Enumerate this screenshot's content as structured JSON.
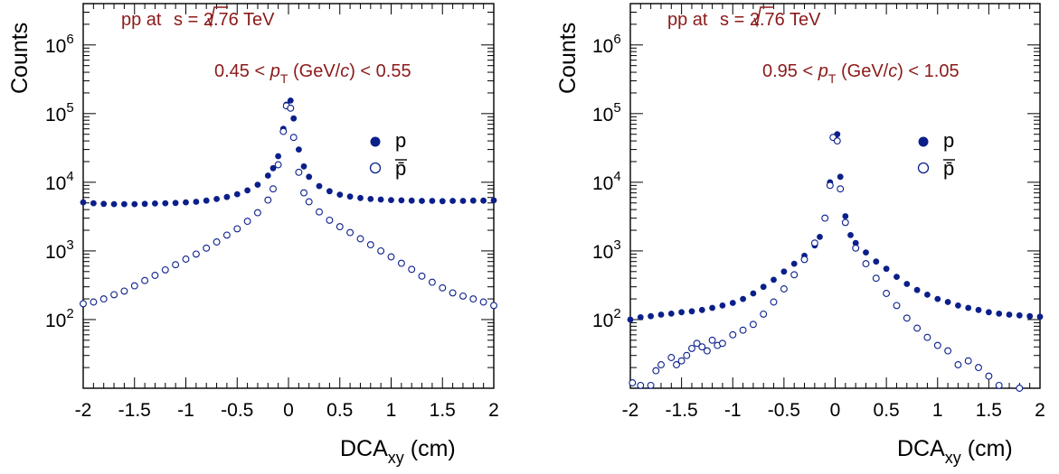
{
  "colors": {
    "marker": "#0b1f8a",
    "annotation": "#8b1a1a",
    "axis": "#000000"
  },
  "chart_data": [
    {
      "type": "scatter",
      "log_y": true,
      "xlabel_main": "DCA",
      "xlabel_sub": "xy",
      "xlabel_unit": " (cm)",
      "ylabel": "Counts",
      "xlim": [
        -2,
        2
      ],
      "ylim": [
        10,
        4000000
      ],
      "x_ticks": [
        "-2",
        "-1.5",
        "-1",
        "-0.5",
        "0",
        "0.5",
        "1",
        "1.5",
        "2"
      ],
      "y_ticks": [
        {
          "base": "10",
          "exp": "2"
        },
        {
          "base": "10",
          "exp": "3"
        },
        {
          "base": "10",
          "exp": "4"
        },
        {
          "base": "10",
          "exp": "5"
        },
        {
          "base": "10",
          "exp": "6"
        }
      ],
      "annotation_energy": {
        "prefix": "pp at ",
        "sqrt_s": "s",
        "suffix": " = 2.76 TeV"
      },
      "annotation_pt": {
        "low": "0.45",
        "var": "p",
        "var_sub": "T",
        "mid": " (GeV/",
        "c": "c",
        "high": ") < 0.55"
      },
      "legend_position": "right",
      "series": [
        {
          "name": "p",
          "marker": "filled",
          "points": [
            [
              -2.0,
              5100
            ],
            [
              -1.9,
              4950
            ],
            [
              -1.8,
              4850
            ],
            [
              -1.7,
              4800
            ],
            [
              -1.6,
              4800
            ],
            [
              -1.5,
              4800
            ],
            [
              -1.4,
              4850
            ],
            [
              -1.3,
              4900
            ],
            [
              -1.2,
              4950
            ],
            [
              -1.1,
              5000
            ],
            [
              -1.0,
              5100
            ],
            [
              -0.9,
              5200
            ],
            [
              -0.8,
              5400
            ],
            [
              -0.7,
              5700
            ],
            [
              -0.6,
              6100
            ],
            [
              -0.5,
              6700
            ],
            [
              -0.4,
              7600
            ],
            [
              -0.3,
              9200
            ],
            [
              -0.2,
              12500
            ],
            [
              -0.15,
              16000
            ],
            [
              -0.1,
              24000
            ],
            [
              -0.05,
              60000
            ],
            [
              -0.02,
              135000
            ],
            [
              0.02,
              155000
            ],
            [
              0.05,
              85000
            ],
            [
              0.1,
              30000
            ],
            [
              0.15,
              17000
            ],
            [
              0.2,
              12000
            ],
            [
              0.3,
              8800
            ],
            [
              0.4,
              7400
            ],
            [
              0.5,
              6600
            ],
            [
              0.6,
              6200
            ],
            [
              0.7,
              5900
            ],
            [
              0.8,
              5700
            ],
            [
              0.9,
              5600
            ],
            [
              1.0,
              5500
            ],
            [
              1.1,
              5450
            ],
            [
              1.2,
              5400
            ],
            [
              1.3,
              5350
            ],
            [
              1.4,
              5350
            ],
            [
              1.5,
              5300
            ],
            [
              1.6,
              5350
            ],
            [
              1.7,
              5350
            ],
            [
              1.8,
              5400
            ],
            [
              1.9,
              5400
            ],
            [
              2.0,
              5450
            ]
          ]
        },
        {
          "name": "p̄",
          "marker": "open",
          "points": [
            [
              -2.0,
              170
            ],
            [
              -1.9,
              180
            ],
            [
              -1.8,
              200
            ],
            [
              -1.7,
              230
            ],
            [
              -1.6,
              260
            ],
            [
              -1.5,
              310
            ],
            [
              -1.4,
              370
            ],
            [
              -1.3,
              440
            ],
            [
              -1.2,
              530
            ],
            [
              -1.1,
              630
            ],
            [
              -1.0,
              760
            ],
            [
              -0.9,
              900
            ],
            [
              -0.8,
              1100
            ],
            [
              -0.7,
              1350
            ],
            [
              -0.6,
              1700
            ],
            [
              -0.5,
              2100
            ],
            [
              -0.4,
              2700
            ],
            [
              -0.3,
              3600
            ],
            [
              -0.2,
              5500
            ],
            [
              -0.15,
              8000
            ],
            [
              -0.1,
              18000
            ],
            [
              -0.05,
              55000
            ],
            [
              -0.02,
              130000
            ],
            [
              0.02,
              120000
            ],
            [
              0.05,
              45000
            ],
            [
              0.1,
              14000
            ],
            [
              0.15,
              7000
            ],
            [
              0.2,
              5200
            ],
            [
              0.3,
              3700
            ],
            [
              0.4,
              2800
            ],
            [
              0.5,
              2250
            ],
            [
              0.6,
              1850
            ],
            [
              0.7,
              1500
            ],
            [
              0.8,
              1230
            ],
            [
              0.9,
              1000
            ],
            [
              1.0,
              820
            ],
            [
              1.1,
              660
            ],
            [
              1.2,
              540
            ],
            [
              1.3,
              430
            ],
            [
              1.4,
              350
            ],
            [
              1.5,
              290
            ],
            [
              1.6,
              245
            ],
            [
              1.7,
              220
            ],
            [
              1.8,
              200
            ],
            [
              1.9,
              180
            ],
            [
              2.0,
              160
            ]
          ]
        }
      ]
    },
    {
      "type": "scatter",
      "log_y": true,
      "xlabel_main": "DCA",
      "xlabel_sub": "xy",
      "xlabel_unit": " (cm)",
      "ylabel": "Counts",
      "xlim": [
        -2,
        2
      ],
      "ylim": [
        10,
        4000000
      ],
      "x_ticks": [
        "-2",
        "-1.5",
        "-1",
        "-0.5",
        "0",
        "0.5",
        "1",
        "1.5",
        "2"
      ],
      "y_ticks": [
        {
          "base": "10",
          "exp": "2"
        },
        {
          "base": "10",
          "exp": "3"
        },
        {
          "base": "10",
          "exp": "4"
        },
        {
          "base": "10",
          "exp": "5"
        },
        {
          "base": "10",
          "exp": "6"
        }
      ],
      "annotation_energy": {
        "prefix": "pp at ",
        "sqrt_s": "s",
        "suffix": " = 2.76 TeV"
      },
      "annotation_pt": {
        "low": "0.95",
        "var": "p",
        "var_sub": "T",
        "mid": " (GeV/",
        "c": "c",
        "high": ") < 1.05"
      },
      "legend_position": "right",
      "series": [
        {
          "name": "p",
          "marker": "filled",
          "points": [
            [
              -2.0,
              100
            ],
            [
              -1.9,
              108
            ],
            [
              -1.8,
              112
            ],
            [
              -1.7,
              118
            ],
            [
              -1.6,
              122
            ],
            [
              -1.5,
              128
            ],
            [
              -1.4,
              132
            ],
            [
              -1.3,
              138
            ],
            [
              -1.2,
              148
            ],
            [
              -1.1,
              160
            ],
            [
              -1.0,
              175
            ],
            [
              -0.9,
              200
            ],
            [
              -0.8,
              240
            ],
            [
              -0.7,
              300
            ],
            [
              -0.6,
              380
            ],
            [
              -0.5,
              500
            ],
            [
              -0.4,
              650
            ],
            [
              -0.3,
              850
            ],
            [
              -0.2,
              1200
            ],
            [
              -0.15,
              1600
            ],
            [
              -0.1,
              3000
            ],
            [
              -0.05,
              10000
            ],
            [
              -0.02,
              45000
            ],
            [
              0.02,
              50000
            ],
            [
              0.05,
              12000
            ],
            [
              0.1,
              3200
            ],
            [
              0.15,
              1700
            ],
            [
              0.2,
              1300
            ],
            [
              0.3,
              950
            ],
            [
              0.4,
              700
            ],
            [
              0.5,
              550
            ],
            [
              0.6,
              420
            ],
            [
              0.7,
              330
            ],
            [
              0.8,
              270
            ],
            [
              0.9,
              230
            ],
            [
              1.0,
              200
            ],
            [
              1.1,
              180
            ],
            [
              1.2,
              160
            ],
            [
              1.3,
              148
            ],
            [
              1.4,
              138
            ],
            [
              1.5,
              128
            ],
            [
              1.6,
              122
            ],
            [
              1.7,
              118
            ],
            [
              1.8,
              115
            ],
            [
              1.9,
              112
            ],
            [
              2.0,
              110
            ]
          ]
        },
        {
          "name": "p̄",
          "marker": "open",
          "points": [
            [
              -1.98,
              12
            ],
            [
              -1.9,
              11
            ],
            [
              -1.8,
              11
            ],
            [
              -1.75,
              18
            ],
            [
              -1.7,
              22
            ],
            [
              -1.6,
              28
            ],
            [
              -1.55,
              22
            ],
            [
              -1.5,
              25
            ],
            [
              -1.45,
              30
            ],
            [
              -1.4,
              38
            ],
            [
              -1.35,
              45
            ],
            [
              -1.3,
              40
            ],
            [
              -1.25,
              35
            ],
            [
              -1.2,
              50
            ],
            [
              -1.15,
              42
            ],
            [
              -1.1,
              45
            ],
            [
              -1.0,
              60
            ],
            [
              -0.9,
              70
            ],
            [
              -0.8,
              85
            ],
            [
              -0.7,
              120
            ],
            [
              -0.6,
              180
            ],
            [
              -0.5,
              280
            ],
            [
              -0.4,
              450
            ],
            [
              -0.3,
              750
            ],
            [
              -0.2,
              1300
            ],
            [
              -0.1,
              3000
            ],
            [
              -0.05,
              9000
            ],
            [
              -0.02,
              45000
            ],
            [
              0.02,
              40000
            ],
            [
              0.05,
              8000
            ],
            [
              0.1,
              2600
            ],
            [
              0.2,
              1100
            ],
            [
              0.3,
              650
            ],
            [
              0.4,
              400
            ],
            [
              0.5,
              240
            ],
            [
              0.6,
              160
            ],
            [
              0.7,
              105
            ],
            [
              0.8,
              75
            ],
            [
              0.9,
              55
            ],
            [
              1.0,
              42
            ],
            [
              1.1,
              35
            ],
            [
              1.2,
              22
            ],
            [
              1.3,
              25
            ],
            [
              1.4,
              20
            ],
            [
              1.5,
              15
            ],
            [
              1.6,
              11
            ],
            [
              1.7,
              9
            ],
            [
              1.8,
              10
            ]
          ]
        }
      ]
    }
  ]
}
